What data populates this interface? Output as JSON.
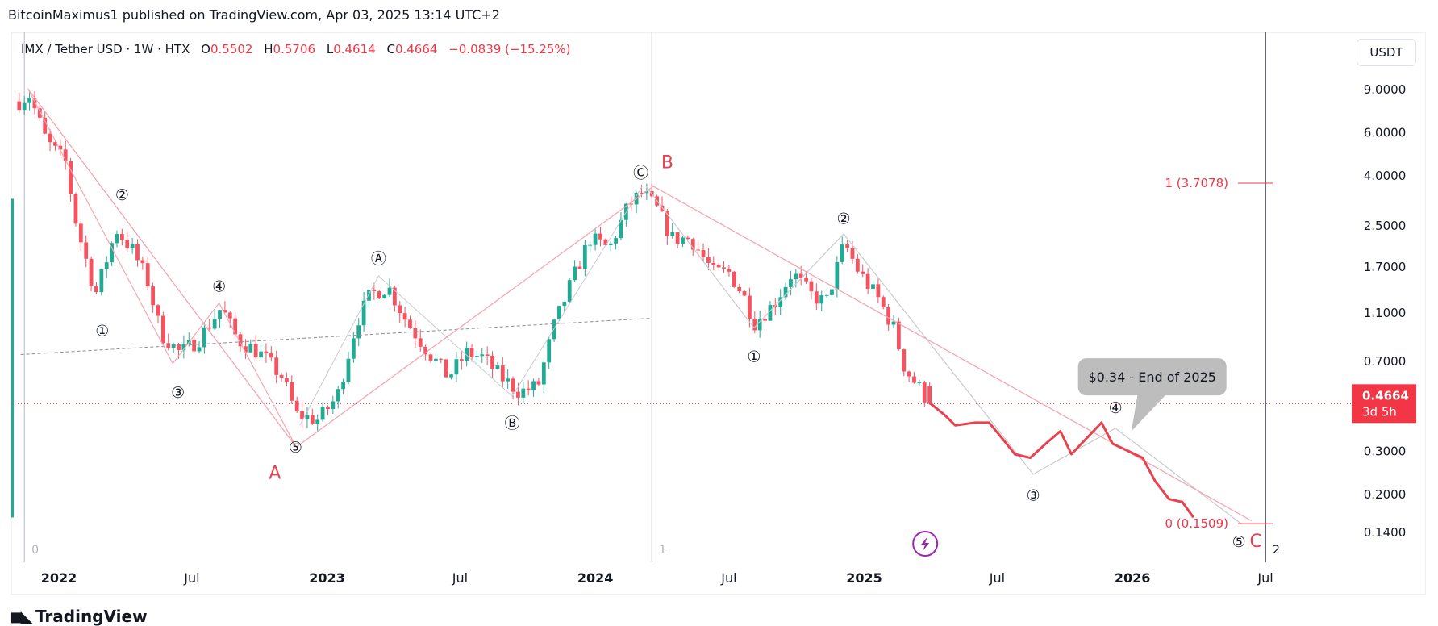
{
  "publisher": "BitcoinMaximus1 published on TradingView.com, Apr 03, 2025 13:14 UTC+2",
  "legend": {
    "symbol": "IMX / Tether USD · 1W · HTX",
    "o_label": "O",
    "o": "0.5502",
    "h_label": "H",
    "h": "0.5706",
    "l_label": "L",
    "l": "0.4614",
    "c_label": "C",
    "c": "0.4664",
    "change": "−0.0839 (−15.25%)"
  },
  "currency_button": "USDT",
  "logo_text": "TradingView",
  "colors": {
    "up": "#22ab94",
    "down": "#f7525f",
    "accent_red": "#f23645",
    "trend_pink": "#f4a7b2",
    "trend_grey": "#c8cad0",
    "wave_red": "#e8414f",
    "lightning": "#9c27b0"
  },
  "chart_data": {
    "type": "candlestick",
    "title": "",
    "y_scale": "log",
    "ylim": [
      0.128,
      10
    ],
    "xlim": [
      "2021-11-01",
      "2026-07-20"
    ],
    "grid": false,
    "y_ticks": [
      "9.0000",
      "6.0000",
      "4.0000",
      "2.5000",
      "1.7000",
      "1.1000",
      "0.7000",
      "0.3000",
      "0.2000",
      "0.1400"
    ],
    "x_ticks": [
      {
        "label": "2022",
        "date": "2022-01-01"
      },
      {
        "label": "Jul",
        "date": "2022-07-01"
      },
      {
        "label": "2023",
        "date": "2023-01-01"
      },
      {
        "label": "Jul",
        "date": "2023-07-01"
      },
      {
        "label": "2024",
        "date": "2024-01-01"
      },
      {
        "label": "Jul",
        "date": "2024-07-01"
      },
      {
        "label": "2025",
        "date": "2025-01-01"
      },
      {
        "label": "Jul",
        "date": "2025-07-01"
      },
      {
        "label": "2026",
        "date": "2026-01-01"
      },
      {
        "label": "Jul",
        "date": "2026-07-01"
      }
    ],
    "current_price": {
      "value": "0.4664",
      "countdown": "3d 5h"
    },
    "weekly_close_path": [
      [
        "2021-11-08",
        8.0
      ],
      [
        "2021-11-22",
        8.5
      ],
      [
        "2021-12-15",
        5.5
      ],
      [
        "2022-01-10",
        4.5
      ],
      [
        "2022-01-25",
        2.5
      ],
      [
        "2022-02-20",
        1.3
      ],
      [
        "2022-03-20",
        2.4
      ],
      [
        "2022-04-10",
        2.0
      ],
      [
        "2022-05-01",
        1.5
      ],
      [
        "2022-05-20",
        0.9
      ],
      [
        "2022-06-15",
        0.75
      ],
      [
        "2022-07-10",
        0.85
      ],
      [
        "2022-08-10",
        1.15
      ],
      [
        "2022-09-01",
        0.85
      ],
      [
        "2022-10-01",
        0.75
      ],
      [
        "2022-11-01",
        0.6
      ],
      [
        "2022-11-20",
        0.42
      ],
      [
        "2022-12-20",
        0.4
      ],
      [
        "2023-01-15",
        0.5
      ],
      [
        "2023-02-10",
        1.0
      ],
      [
        "2023-03-01",
        1.3
      ],
      [
        "2023-03-25",
        1.4
      ],
      [
        "2023-04-20",
        1.0
      ],
      [
        "2023-05-20",
        0.75
      ],
      [
        "2023-06-15",
        0.6
      ],
      [
        "2023-07-10",
        0.75
      ],
      [
        "2023-08-01",
        0.72
      ],
      [
        "2023-08-25",
        0.6
      ],
      [
        "2023-09-20",
        0.52
      ],
      [
        "2023-10-15",
        0.55
      ],
      [
        "2023-11-05",
        0.95
      ],
      [
        "2023-12-01",
        1.5
      ],
      [
        "2023-12-25",
        2.2
      ],
      [
        "2024-01-20",
        2.0
      ],
      [
        "2024-02-15",
        3.0
      ],
      [
        "2024-03-05",
        3.4
      ],
      [
        "2024-03-25",
        2.9
      ],
      [
        "2024-04-15",
        2.2
      ],
      [
        "2024-05-10",
        2.2
      ],
      [
        "2024-06-10",
        1.6
      ],
      [
        "2024-07-01",
        1.6
      ],
      [
        "2024-07-20",
        1.3
      ],
      [
        "2024-08-05",
        1.0
      ],
      [
        "2024-09-01",
        1.2
      ],
      [
        "2024-09-25",
        1.6
      ],
      [
        "2024-10-20",
        1.3
      ],
      [
        "2024-11-10",
        1.2
      ],
      [
        "2024-12-05",
        2.1
      ],
      [
        "2024-12-25",
        1.6
      ],
      [
        "2025-01-20",
        1.25
      ],
      [
        "2025-02-10",
        0.95
      ],
      [
        "2025-02-25",
        0.65
      ],
      [
        "2025-03-15",
        0.55
      ],
      [
        "2025-03-31",
        0.4664
      ]
    ],
    "projection_path": [
      [
        "2025-03-31",
        0.47
      ],
      [
        "2025-04-20",
        0.42
      ],
      [
        "2025-05-05",
        0.38
      ],
      [
        "2025-06-01",
        0.39
      ],
      [
        "2025-06-20",
        0.39
      ],
      [
        "2025-07-10",
        0.33
      ],
      [
        "2025-07-25",
        0.29
      ],
      [
        "2025-08-15",
        0.28
      ],
      [
        "2025-09-05",
        0.32
      ],
      [
        "2025-09-25",
        0.36
      ],
      [
        "2025-10-10",
        0.29
      ],
      [
        "2025-11-01",
        0.34
      ],
      [
        "2025-11-20",
        0.39
      ],
      [
        "2025-12-05",
        0.32
      ],
      [
        "2025-12-25",
        0.3
      ],
      [
        "2026-01-15",
        0.28
      ],
      [
        "2026-02-01",
        0.225
      ],
      [
        "2026-02-20",
        0.19
      ],
      [
        "2026-03-10",
        0.185
      ],
      [
        "2026-03-25",
        0.16
      ]
    ],
    "trendlines": {
      "abc_pink": [
        [
          "2021-11-20",
          9.0
        ],
        [
          "2022-11-20",
          0.31
        ],
        [
          "2024-03-20",
          3.6
        ],
        [
          "2026-06-12",
          0.155
        ]
      ],
      "impulse_2022_pink": [
        [
          "2021-11-20",
          9.0
        ],
        [
          "2022-06-05",
          0.68
        ],
        [
          "2022-08-07",
          1.2
        ],
        [
          "2022-11-20",
          0.31
        ]
      ],
      "grey_2023": [
        [
          "2022-11-25",
          0.38
        ],
        [
          "2023-03-12",
          1.55
        ],
        [
          "2023-09-10",
          0.5
        ],
        [
          "2024-03-05",
          3.6
        ]
      ],
      "grey_2024_2026": [
        [
          "2024-03-10",
          3.6
        ],
        [
          "2024-08-04",
          0.95
        ],
        [
          "2024-12-04",
          2.3
        ],
        [
          "2025-08-19",
          0.24
        ],
        [
          "2025-12-09",
          0.37
        ],
        [
          "2026-05-30",
          0.15
        ]
      ],
      "dashed_grey": [
        [
          "2021-11-10",
          0.74
        ],
        [
          "2024-03-15",
          1.04
        ]
      ]
    },
    "wave_labels": [
      {
        "text": "①",
        "date": "2022-03-01",
        "price": 0.93,
        "color": "black"
      },
      {
        "text": "②",
        "date": "2022-03-28",
        "price": 3.34,
        "color": "black"
      },
      {
        "text": "③",
        "date": "2022-06-12",
        "price": 0.52,
        "color": "black"
      },
      {
        "text": "④",
        "date": "2022-08-07",
        "price": 1.41,
        "color": "black"
      },
      {
        "text": "⑤",
        "date": "2022-11-19",
        "price": 0.31,
        "color": "black"
      },
      {
        "text": "A",
        "date": "2022-10-22",
        "price": 0.243,
        "color": "red"
      },
      {
        "text": "Ⓐ",
        "date": "2023-03-12",
        "price": 1.83,
        "color": "black"
      },
      {
        "text": "Ⓑ",
        "date": "2023-09-10",
        "price": 0.39,
        "color": "black"
      },
      {
        "text": "Ⓒ",
        "date": "2024-03-03",
        "price": 4.11,
        "color": "black"
      },
      {
        "text": "B",
        "date": "2024-04-08",
        "price": 4.49,
        "color": "red"
      },
      {
        "text": "①",
        "date": "2024-08-04",
        "price": 0.73,
        "color": "black"
      },
      {
        "text": "②",
        "date": "2024-12-04",
        "price": 2.67,
        "color": "black"
      },
      {
        "text": "③",
        "date": "2025-08-19",
        "price": 0.198,
        "color": "black"
      },
      {
        "text": "④",
        "date": "2025-12-09",
        "price": 0.45,
        "color": "black"
      },
      {
        "text": "⑤",
        "date": "2026-05-26",
        "price": 0.128,
        "color": "black"
      },
      {
        "text": "C",
        "date": "2026-06-18",
        "price": 0.128,
        "color": "red"
      }
    ],
    "fib_levels": [
      {
        "label": "1 (3.7078)",
        "price": 3.7078
      },
      {
        "label": "0 (0.1509)",
        "price": 0.1509
      }
    ],
    "callout": {
      "text": "$0.34 - End of 2025",
      "date": "2026-01-28",
      "price": 0.6,
      "target_date": "2025-12-24",
      "target_price": 0.36
    },
    "cycle_markers": [
      {
        "label": "0",
        "date": "2021-11-15"
      },
      {
        "label": "1",
        "date": "2024-03-18"
      },
      {
        "label": "2",
        "date": "2026-07-01"
      }
    ]
  }
}
